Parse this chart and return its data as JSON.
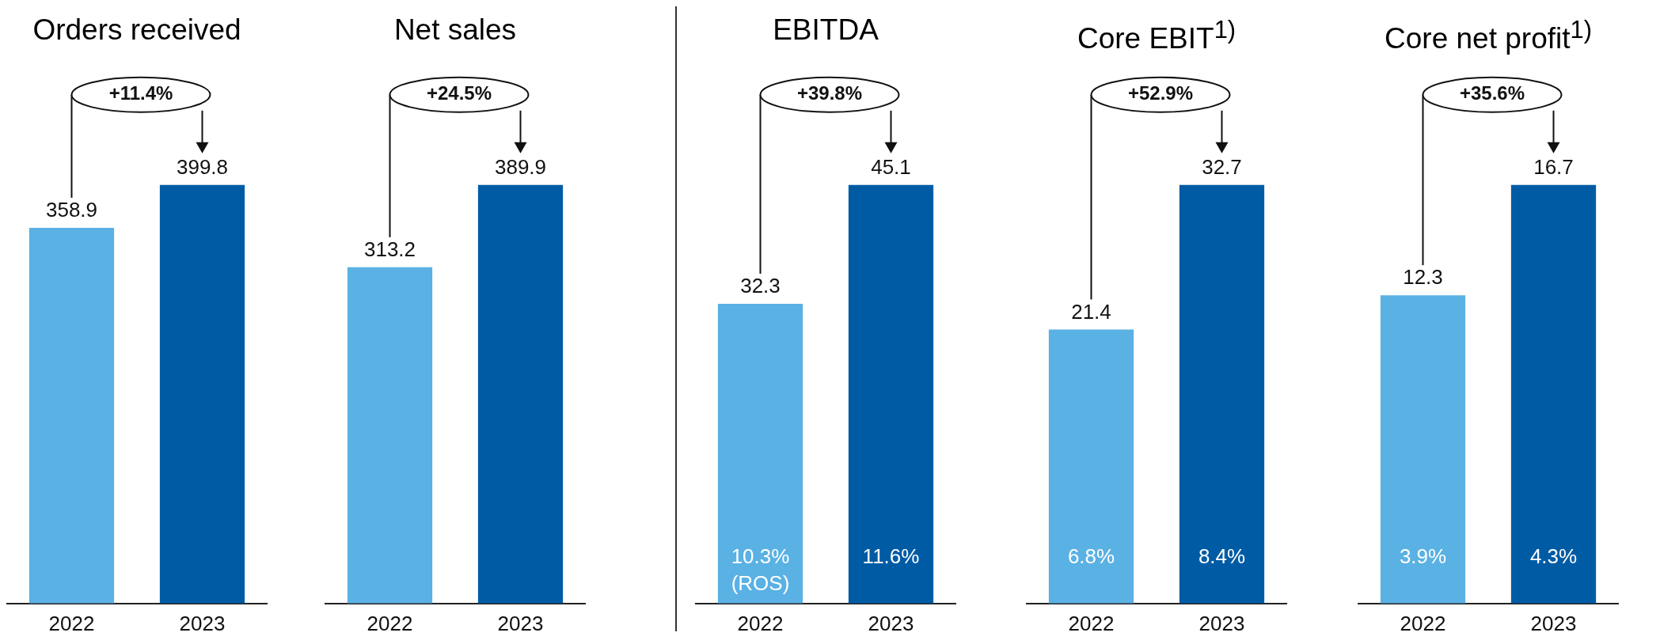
{
  "chart_data": [
    {
      "type": "bar",
      "title": "Orders received",
      "categories": [
        "2022",
        "2023"
      ],
      "values": [
        358.9,
        399.8
      ],
      "colors": [
        "#5ab1e3",
        "#005ba5"
      ],
      "data_labels": true,
      "tick_labels": "x",
      "annotations": [
        "+11.4%"
      ]
    },
    {
      "type": "bar",
      "title": "Net sales",
      "categories": [
        "2022",
        "2023"
      ],
      "values": [
        313.2,
        389.9
      ],
      "colors": [
        "#5ab1e3",
        "#005ba5"
      ],
      "data_labels": true,
      "tick_labels": "x",
      "annotations": [
        "+24.5%"
      ]
    },
    {
      "type": "bar",
      "title": "EBITDA",
      "categories": [
        "2022",
        "2023"
      ],
      "values": [
        32.3,
        45.1
      ],
      "colors": [
        "#5ab1e3",
        "#005ba5"
      ],
      "data_labels": true,
      "tick_labels": "x",
      "annotations": [
        "+39.8%",
        "10.3%",
        "(ROS)",
        "11.6%"
      ]
    },
    {
      "type": "bar",
      "title": "Core EBIT$^{1)}$",
      "categories": [
        "2022",
        "2023"
      ],
      "values": [
        21.4,
        32.7
      ],
      "colors": [
        "#5ab1e3",
        "#005ba5"
      ],
      "data_labels": true,
      "tick_labels": "x",
      "annotations": [
        "+52.9%",
        "6.8%",
        "8.4%"
      ]
    },
    {
      "type": "bar",
      "title": "Core net profit$^{1)}$",
      "categories": [
        "2022",
        "2023"
      ],
      "values": [
        12.3,
        16.7
      ],
      "colors": [
        "#5ab1e3",
        "#005ba5"
      ],
      "data_labels": true,
      "tick_labels": "x",
      "annotations": [
        "+35.6%",
        "3.9%",
        "4.3%"
      ]
    }
  ]
}
